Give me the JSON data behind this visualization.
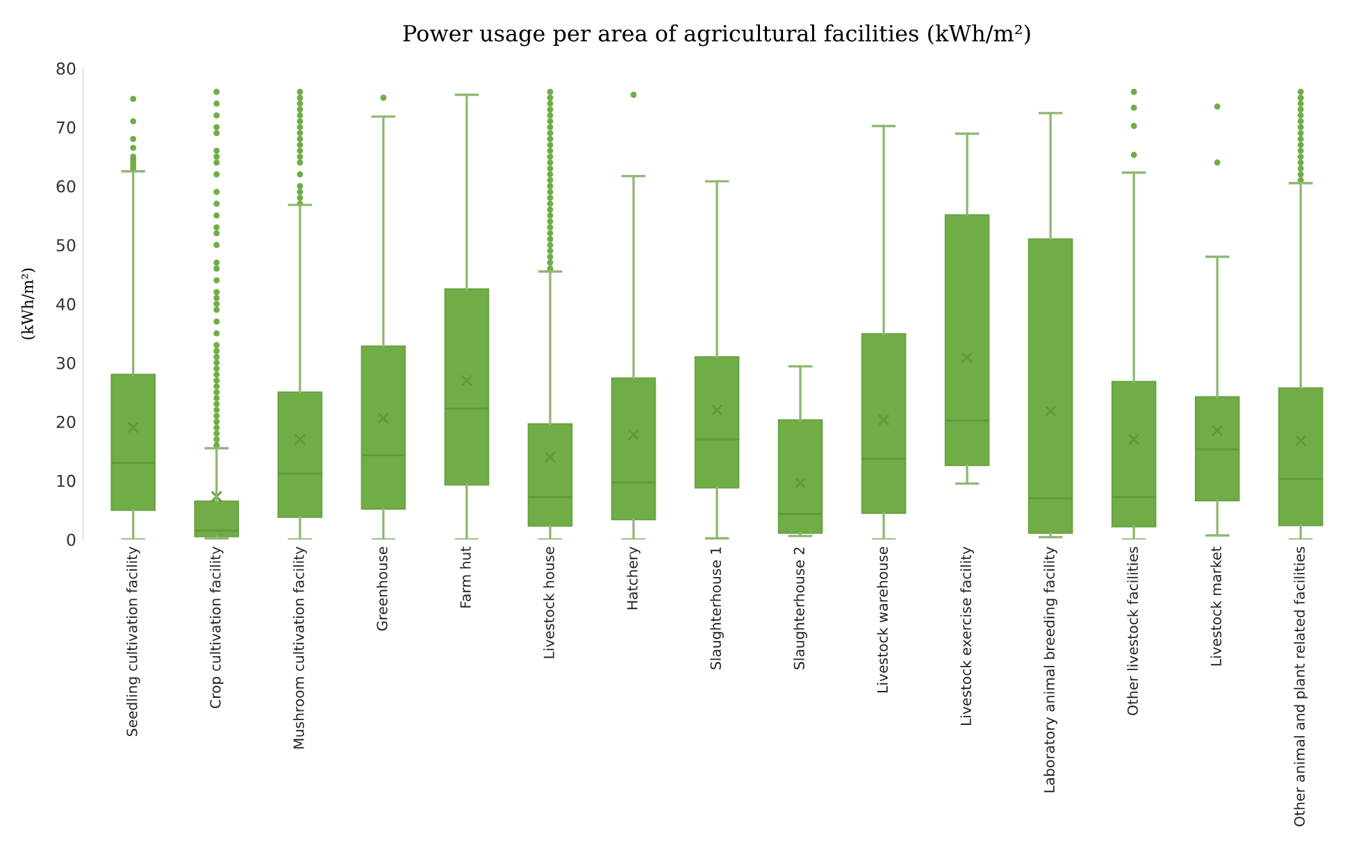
{
  "chart_data": {
    "type": "box",
    "title": "Power usage per area of agricultural facilities (kWh/m²)",
    "ylabel": "(kWh/m²)",
    "categories": [
      "Seedling cultivation facility",
      "Crop cultivation facility",
      "Mushroom cultivation facility",
      "Greenhouse",
      "Farm hut",
      "Livestock house",
      "Hatchery",
      "Slaughterhouse 1",
      "Slaughterhouse 2",
      "Livestock warehouse",
      "Livestock exercise facility",
      "Laboratory animal breeding facility",
      "Other livestock facilities",
      "Livestock market",
      "Other animal and plant related facilities"
    ],
    "boxes": [
      {
        "low": 0,
        "q1": 5,
        "median": 13,
        "q3": 28,
        "high": 62.5,
        "mean": 19,
        "outliers": [
          63,
          63.5,
          64,
          64.5,
          65,
          66.5,
          68,
          71,
          74.8
        ]
      },
      {
        "low": 0.2,
        "q1": 0.5,
        "median": 1.5,
        "q3": 6.5,
        "high": 15.5,
        "mean": 7.3,
        "outliers": [
          16,
          17,
          18,
          19,
          20,
          21,
          22,
          23,
          24,
          25,
          26,
          27,
          28,
          29,
          30,
          31,
          32,
          33,
          35,
          37,
          39,
          40,
          41,
          42,
          44,
          46,
          47,
          50,
          52,
          53,
          55,
          57,
          59,
          62,
          64,
          65,
          66,
          69,
          70,
          72,
          74,
          76
        ]
      },
      {
        "low": 0,
        "q1": 3.8,
        "median": 11.2,
        "q3": 25,
        "high": 56.8,
        "mean": 17,
        "outliers": [
          57,
          58,
          59,
          60,
          62,
          64,
          65,
          66,
          67,
          68,
          69,
          70,
          71,
          72,
          73,
          74,
          75,
          76
        ]
      },
      {
        "low": 0,
        "q1": 5.2,
        "median": 14.3,
        "q3": 32.8,
        "high": 71.8,
        "mean": 20.6,
        "outliers": [
          75
        ]
      },
      {
        "low": 0,
        "q1": 9.3,
        "median": 22.2,
        "q3": 42.5,
        "high": 75.5,
        "mean": 27
      },
      {
        "low": 0,
        "q1": 2.3,
        "median": 7.2,
        "q3": 19.6,
        "high": 45.5,
        "mean": 14,
        "outliers": [
          46,
          47,
          48,
          49,
          50,
          51,
          52,
          53,
          54,
          55,
          56,
          57,
          58,
          59,
          60,
          61,
          62,
          63,
          64,
          65,
          66,
          67,
          68,
          69,
          70,
          71,
          72,
          73,
          74,
          75,
          76
        ]
      },
      {
        "low": 0,
        "q1": 3.4,
        "median": 9.7,
        "q3": 27.4,
        "high": 61.7,
        "mean": 17.8,
        "outliers": [
          75.5
        ]
      },
      {
        "low": 0.2,
        "q1": 8.8,
        "median": 17,
        "q3": 31,
        "high": 60.8,
        "mean": 22
      },
      {
        "low": 0.6,
        "q1": 1.1,
        "median": 4.3,
        "q3": 20.3,
        "high": 29.4,
        "mean": 9.6
      },
      {
        "low": 0,
        "q1": 4.5,
        "median": 13.7,
        "q3": 34.9,
        "high": 70.2,
        "mean": 20.3
      },
      {
        "low": 9.5,
        "q1": 12.6,
        "median": 20.2,
        "q3": 55.1,
        "high": 68.9,
        "mean": 30.9
      },
      {
        "low": 0.4,
        "q1": 1.1,
        "median": 7,
        "q3": 51,
        "high": 72.4,
        "mean": 21.8
      },
      {
        "low": 0,
        "q1": 2.2,
        "median": 7.2,
        "q3": 26.8,
        "high": 62.3,
        "mean": 17,
        "outliers": [
          65.3,
          70.2,
          73.3,
          76
        ]
      },
      {
        "low": 0.7,
        "q1": 6.6,
        "median": 15.3,
        "q3": 24.2,
        "high": 48,
        "mean": 18.5,
        "outliers": [
          64,
          73.5
        ]
      },
      {
        "low": 0,
        "q1": 2.4,
        "median": 10.3,
        "q3": 25.7,
        "high": 60.5,
        "mean": 16.8,
        "outliers": [
          61,
          62,
          63,
          64,
          65,
          66,
          67,
          68,
          69,
          70,
          71,
          72,
          73,
          74,
          75,
          76
        ]
      }
    ],
    "color": "#70ad47",
    "ylim": [
      0,
      80
    ],
    "yticks": [
      0,
      10,
      20,
      30,
      40,
      50,
      60,
      70,
      80
    ]
  }
}
